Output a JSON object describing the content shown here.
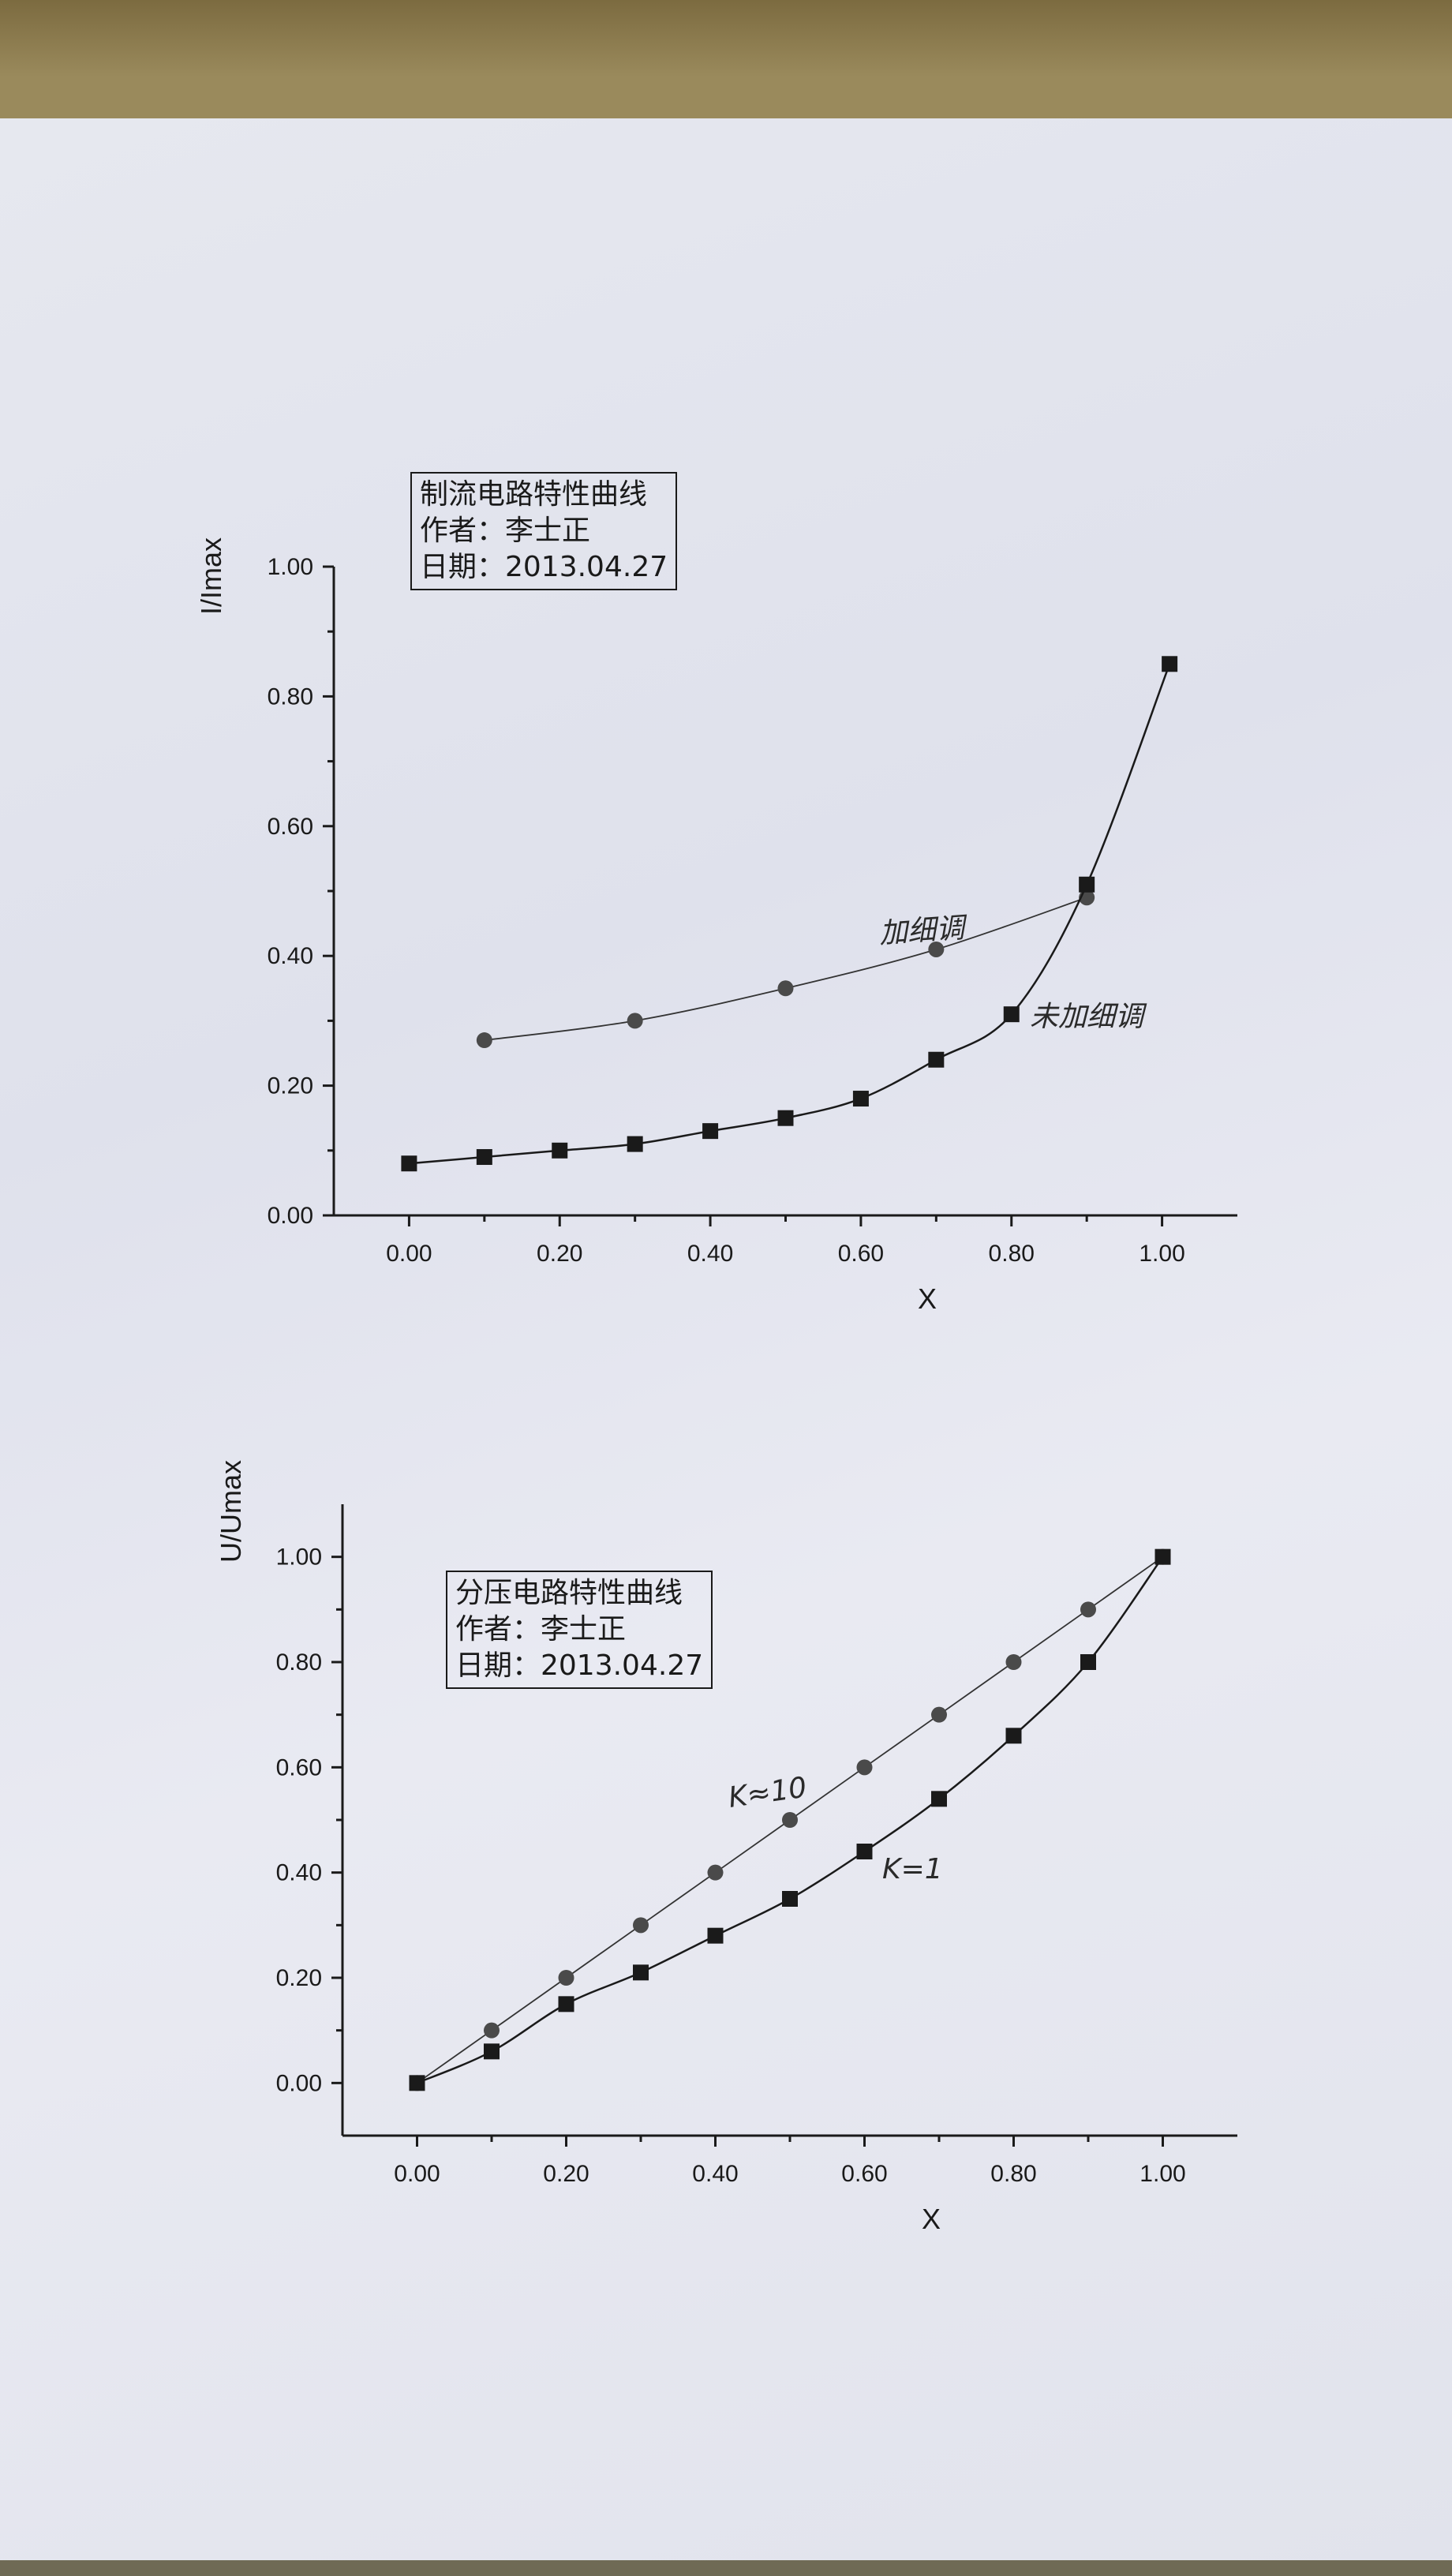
{
  "chart_data": [
    {
      "type": "line",
      "info_box": {
        "line1": "制流电路特性曲线",
        "line2": "作者：李士正",
        "line3": "日期：2013.04.27"
      },
      "xlabel": "X",
      "ylabel": "I/Imax",
      "xlim": [
        -0.1,
        1.1
      ],
      "ylim": [
        0,
        1.0
      ],
      "x_ticks": [
        "0.00",
        "0.20",
        "0.40",
        "0.60",
        "0.80",
        "1.00"
      ],
      "y_ticks": [
        "0.00",
        "0.20",
        "0.40",
        "0.60",
        "0.80",
        "1.00"
      ],
      "series": [
        {
          "name": "加细调",
          "marker": "circle",
          "x": [
            0.1,
            0.3,
            0.5,
            0.7,
            0.9
          ],
          "y": [
            0.27,
            0.3,
            0.35,
            0.41,
            0.49
          ]
        },
        {
          "name": "未加细调",
          "marker": "square",
          "x": [
            0.0,
            0.1,
            0.2,
            0.3,
            0.4,
            0.5,
            0.6,
            0.7,
            0.8,
            0.9,
            1.01
          ],
          "y": [
            0.08,
            0.09,
            0.1,
            0.11,
            0.13,
            0.15,
            0.18,
            0.24,
            0.31,
            0.51,
            0.85
          ]
        }
      ]
    },
    {
      "type": "line",
      "info_box": {
        "line1": "分压电路特性曲线",
        "line2": "作者：李士正",
        "line3": "日期：2013.04.27"
      },
      "xlabel": "X",
      "ylabel": "U/Umax",
      "xlim": [
        -0.1,
        1.1
      ],
      "ylim": [
        -0.1,
        1.1
      ],
      "x_ticks": [
        "0.00",
        "0.20",
        "0.40",
        "0.60",
        "0.80",
        "1.00"
      ],
      "y_ticks": [
        "0.00",
        "0.20",
        "0.40",
        "0.60",
        "0.80",
        "1.00"
      ],
      "series": [
        {
          "name": "K≈10",
          "marker": "circle",
          "x": [
            0.0,
            0.1,
            0.2,
            0.3,
            0.4,
            0.5,
            0.6,
            0.7,
            0.8,
            0.9,
            1.0
          ],
          "y": [
            0.0,
            0.1,
            0.2,
            0.3,
            0.4,
            0.5,
            0.6,
            0.7,
            0.8,
            0.9,
            1.0
          ]
        },
        {
          "name": "K=1",
          "marker": "square",
          "x": [
            0.0,
            0.1,
            0.2,
            0.3,
            0.4,
            0.5,
            0.6,
            0.7,
            0.8,
            0.9,
            1.0
          ],
          "y": [
            0.0,
            0.06,
            0.15,
            0.21,
            0.28,
            0.35,
            0.44,
            0.54,
            0.66,
            0.8,
            1.0
          ]
        }
      ]
    }
  ]
}
